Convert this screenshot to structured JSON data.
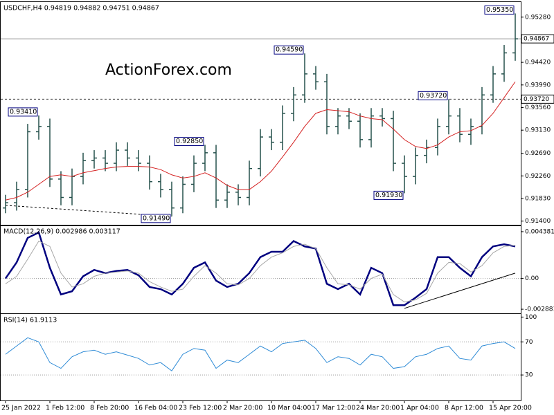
{
  "chart_data": [
    {
      "type": "ohlc",
      "title": "USDCHF,H4  0.94819 0.94882 0.94751 0.94867",
      "watermark": "ActionForex.com",
      "color": "#24504b",
      "categories": [
        "25 Jan 2022",
        null,
        null,
        null,
        "1 Feb 12:00",
        null,
        null,
        null,
        "8 Feb 20:00",
        null,
        null,
        null,
        "16 Feb 04:00",
        null,
        null,
        null,
        "23 Feb 12:00",
        null,
        null,
        null,
        "2 Mar 20:00",
        null,
        null,
        null,
        "10 Mar 04:00",
        null,
        null,
        null,
        "17 Mar 12:00",
        null,
        null,
        null,
        "24 Mar 20:00",
        null,
        null,
        null,
        "1 Apr 04:00",
        null,
        null,
        null,
        "8 Apr 12:00",
        null,
        null,
        null,
        "15 Apr 20:00",
        null,
        null
      ],
      "open": [
        0.9165,
        0.9175,
        0.92,
        0.931,
        0.932,
        0.922,
        0.9185,
        0.9225,
        0.9255,
        0.926,
        0.925,
        0.9275,
        0.926,
        0.925,
        0.9215,
        0.92,
        0.9165,
        0.921,
        0.925,
        0.927,
        0.918,
        0.9195,
        0.9185,
        0.924,
        0.93,
        0.929,
        0.9345,
        0.938,
        0.942,
        0.9405,
        0.932,
        0.934,
        0.933,
        0.9295,
        0.934,
        0.9335,
        0.925,
        0.9225,
        0.9265,
        0.928,
        0.932,
        0.934,
        0.9305,
        0.932,
        0.938,
        0.942,
        0.946
      ],
      "high": [
        0.919,
        0.9215,
        0.9325,
        0.9341,
        0.9335,
        0.9235,
        0.924,
        0.927,
        0.9275,
        0.9275,
        0.929,
        0.929,
        0.9275,
        0.9265,
        0.923,
        0.9215,
        0.9225,
        0.9265,
        0.9285,
        0.9285,
        0.921,
        0.921,
        0.9255,
        0.9315,
        0.9315,
        0.936,
        0.9395,
        0.9459,
        0.9435,
        0.942,
        0.9355,
        0.9355,
        0.9345,
        0.9355,
        0.9355,
        0.935,
        0.9265,
        0.928,
        0.9295,
        0.9335,
        0.9372,
        0.9355,
        0.9335,
        0.9395,
        0.9435,
        0.9475,
        0.9535
      ],
      "low": [
        0.9155,
        0.916,
        0.9185,
        0.9295,
        0.9205,
        0.917,
        0.917,
        0.921,
        0.924,
        0.9235,
        0.9235,
        0.9245,
        0.9235,
        0.92,
        0.9185,
        0.9149,
        0.9155,
        0.9195,
        0.9235,
        0.9165,
        0.9165,
        0.917,
        0.917,
        0.9225,
        0.9275,
        0.9275,
        0.933,
        0.9365,
        0.939,
        0.9305,
        0.9305,
        0.9315,
        0.928,
        0.928,
        0.932,
        0.9235,
        0.9193,
        0.921,
        0.925,
        0.9265,
        0.9305,
        0.929,
        0.9285,
        0.9305,
        0.9365,
        0.9405,
        0.9445
      ],
      "close": [
        0.9175,
        0.92,
        0.931,
        0.932,
        0.922,
        0.9185,
        0.9225,
        0.9255,
        0.926,
        0.925,
        0.9275,
        0.926,
        0.925,
        0.9215,
        0.92,
        0.9165,
        0.921,
        0.925,
        0.927,
        0.918,
        0.9195,
        0.9185,
        0.924,
        0.93,
        0.929,
        0.9345,
        0.938,
        0.942,
        0.9405,
        0.932,
        0.934,
        0.933,
        0.9295,
        0.934,
        0.9335,
        0.925,
        0.9225,
        0.9265,
        0.928,
        0.932,
        0.934,
        0.9305,
        0.932,
        0.938,
        0.942,
        0.946,
        0.94867
      ],
      "series": [
        {
          "color": "#d42020",
          "values": [
            0.918,
            0.9185,
            0.9195,
            0.921,
            0.9225,
            0.9228,
            0.9225,
            0.9232,
            0.9236,
            0.924,
            0.9243,
            0.9244,
            0.9244,
            0.9243,
            0.9238,
            0.9228,
            0.9222,
            0.9225,
            0.9232,
            0.9222,
            0.9208,
            0.92,
            0.92,
            0.9215,
            0.9235,
            0.9262,
            0.929,
            0.932,
            0.9345,
            0.9352,
            0.935,
            0.9348,
            0.934,
            0.9335,
            0.9333,
            0.9315,
            0.9295,
            0.9282,
            0.9278,
            0.9285,
            0.93,
            0.931,
            0.9312,
            0.9322,
            0.9345,
            0.9375,
            0.9405
          ]
        }
      ],
      "ylim": [
        0.9133,
        0.9554
      ],
      "yticks": [
        {
          "value": 0.9528,
          "label": "0.95280"
        },
        {
          "value": 0.9442,
          "label": "0.94420"
        },
        {
          "value": 0.9399,
          "label": "0.93990"
        },
        {
          "value": 0.9356,
          "label": "0.93560"
        },
        {
          "value": 0.9313,
          "label": "0.93130"
        },
        {
          "value": 0.9269,
          "label": "0.92690"
        },
        {
          "value": 0.9226,
          "label": "0.92260"
        },
        {
          "value": 0.9183,
          "label": "0.91830"
        },
        {
          "value": 0.914,
          "label": "0.91400"
        }
      ],
      "hlines": [
        {
          "value": 0.94867,
          "label": "0.94867",
          "style": "solid"
        },
        {
          "value": 0.9372,
          "label": "0.93720",
          "style": "dashed"
        }
      ],
      "annotations": [
        {
          "value": 0.9341,
          "label": "0.93410"
        },
        {
          "value": 0.9149,
          "label": "0.91490"
        },
        {
          "value": 0.9459,
          "label": "0.94590"
        },
        {
          "value": 0.9193,
          "label": "0.91930"
        },
        {
          "value": 0.9372,
          "label": "0.93720"
        },
        {
          "value": 0.9285,
          "label": "0.92850"
        },
        {
          "value": 0.9535,
          "label": "0.95350"
        }
      ],
      "trendlines": [
        {
          "x": [
            0,
            15
          ],
          "y": [
            0.917,
            0.9149
          ]
        }
      ]
    },
    {
      "type": "line",
      "title": "MACD(12,26,9) 0.002986 0.003117",
      "series": [
        {
          "color": "#00007f",
          "width": 2.5,
          "values": [
            0,
            0.0015,
            0.0038,
            0.0043,
            0.001,
            -0.0015,
            -0.0012,
            0.0002,
            0.0008,
            0.0005,
            0.0007,
            0.0008,
            0.0003,
            -0.0008,
            -0.001,
            -0.0015,
            -0.0005,
            0.001,
            0.0015,
            -0.0002,
            -0.0008,
            -0.0005,
            0.0005,
            0.002,
            0.0025,
            0.0025,
            0.0035,
            0.003,
            0.0028,
            -0.0005,
            -0.001,
            -0.0005,
            -0.0015,
            0.001,
            0.0005,
            -0.0025,
            -0.0025,
            -0.0018,
            -0.001,
            0.002,
            0.002,
            0.001,
            0.0002,
            0.002,
            0.003,
            0.0032,
            0.003
          ]
        },
        {
          "color": "#a8a8a8",
          "width": 1,
          "values": [
            -0.0005,
            0.0002,
            0.0018,
            0.0035,
            0.003,
            0.0005,
            -0.0008,
            -0.0005,
            0.0002,
            0.0005,
            0.0006,
            0.0007,
            0.0005,
            -0.0003,
            -0.0008,
            -0.0012,
            -0.001,
            0.0002,
            0.0012,
            0.0005,
            -0.0005,
            -0.0006,
            0,
            0.0012,
            0.002,
            0.0024,
            0.003,
            0.0032,
            0.0028,
            0.001,
            -0.0005,
            -0.0006,
            -0.001,
            0,
            0.0004,
            -0.0015,
            -0.0022,
            -0.002,
            -0.0014,
            0.0005,
            0.0015,
            0.0014,
            0.0006,
            0.0012,
            0.0024,
            0.003,
            0.0031
          ]
        }
      ],
      "ylim": [
        -0.0032,
        0.00483
      ],
      "yticks": [
        0.004381,
        {
          "value": 0,
          "label": "0.00"
        },
        -0.002881
      ],
      "levels": [
        0
      ],
      "trendlines": [
        {
          "x": [
            36,
            46
          ],
          "y": [
            -0.0028,
            0.0005
          ]
        }
      ]
    },
    {
      "type": "line",
      "title": "RSI(14) 61.9113",
      "series": [
        {
          "color": "#2e8bd6",
          "width": 1,
          "values": [
            55,
            65,
            75,
            70,
            45,
            38,
            52,
            58,
            60,
            55,
            58,
            54,
            50,
            42,
            45,
            35,
            55,
            62,
            60,
            38,
            48,
            45,
            55,
            65,
            58,
            68,
            70,
            72,
            62,
            45,
            52,
            50,
            42,
            55,
            52,
            38,
            40,
            52,
            55,
            62,
            65,
            50,
            48,
            65,
            68,
            70,
            62
          ]
        }
      ],
      "ylim": [
        0,
        102
      ],
      "yticks": [
        100,
        70,
        30
      ],
      "levels": [
        70,
        30
      ]
    }
  ]
}
